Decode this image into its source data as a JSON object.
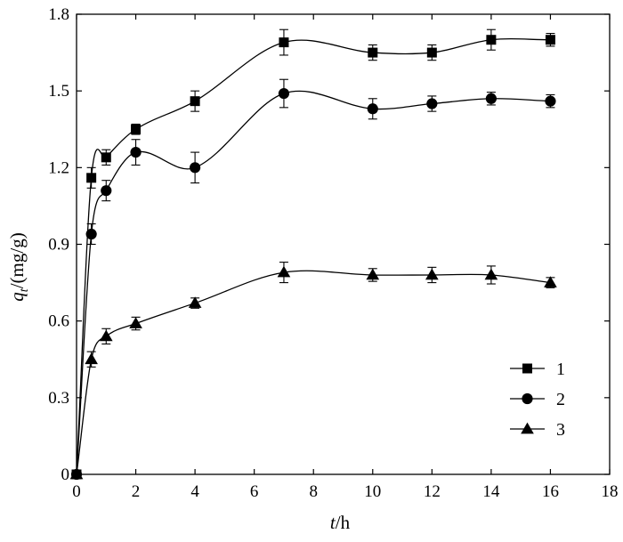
{
  "chart_data": {
    "type": "scatter",
    "title": "",
    "xlabel": {
      "var": "t",
      "unit": "/h"
    },
    "ylabel": {
      "var": "q",
      "sub": "t",
      "unit": "/(mg/g)"
    },
    "xlim": [
      0,
      18
    ],
    "ylim": [
      0,
      1.8
    ],
    "xticks": [
      0,
      2,
      4,
      6,
      8,
      10,
      12,
      14,
      16,
      18
    ],
    "yticks": [
      0,
      0.3,
      0.6,
      0.9,
      1.2,
      1.5,
      1.8
    ],
    "ytick_labels": [
      "0",
      "0.3",
      "0.6",
      "0.9",
      "1.2",
      "1.5",
      "1.8"
    ],
    "grid": false,
    "legend_position": "bottom-right",
    "x": [
      0,
      0.5,
      1,
      2,
      4,
      7,
      10,
      12,
      14,
      16
    ],
    "series": [
      {
        "name": "1",
        "marker": "square",
        "values": [
          0,
          1.16,
          1.24,
          1.35,
          1.46,
          1.69,
          1.65,
          1.65,
          1.7,
          1.7
        ],
        "errors": [
          0,
          0.04,
          0.03,
          0.02,
          0.04,
          0.05,
          0.03,
          0.03,
          0.04,
          0.025
        ]
      },
      {
        "name": "2",
        "marker": "circle",
        "values": [
          0,
          0.94,
          1.11,
          1.26,
          1.2,
          1.49,
          1.43,
          1.45,
          1.47,
          1.46
        ],
        "errors": [
          0,
          0.04,
          0.04,
          0.05,
          0.06,
          0.055,
          0.04,
          0.03,
          0.025,
          0.025
        ]
      },
      {
        "name": "3",
        "marker": "triangle",
        "values": [
          0,
          0.45,
          0.54,
          0.59,
          0.67,
          0.79,
          0.78,
          0.78,
          0.78,
          0.75
        ],
        "errors": [
          0,
          0.03,
          0.03,
          0.025,
          0.02,
          0.04,
          0.025,
          0.03,
          0.035,
          0.02
        ]
      }
    ]
  }
}
